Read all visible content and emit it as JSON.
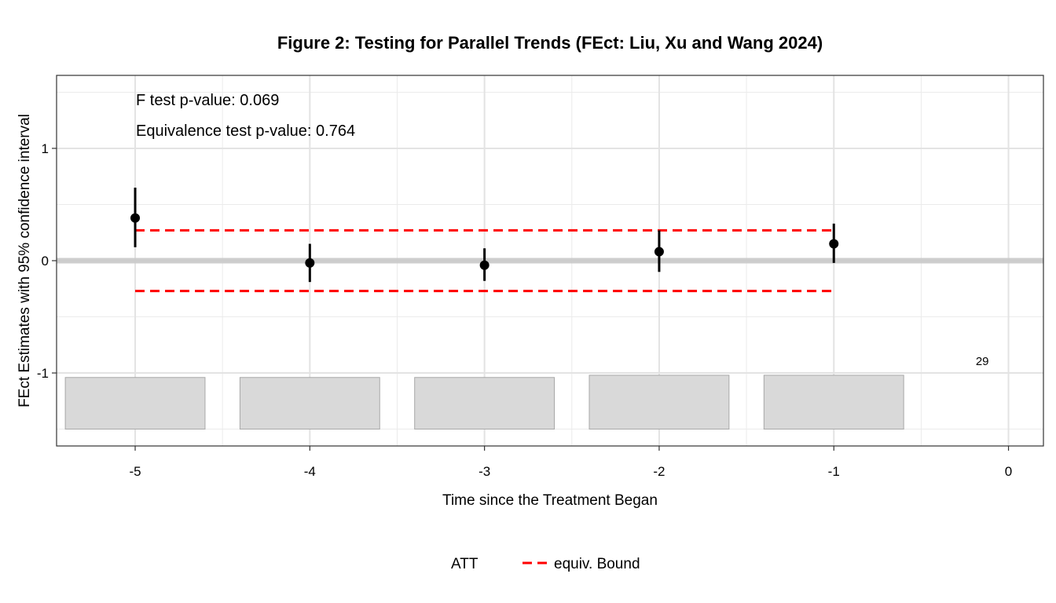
{
  "chart_data": {
    "type": "scatter",
    "title": "Figure 2: Testing for Parallel Trends (FEct: Liu, Xu and Wang 2024)",
    "xlabel": "Time since the Treatment Began",
    "ylabel": "FEct Estimates with 95% confidence interval",
    "xlim": [
      -5.45,
      0.2
    ],
    "ylim": [
      -1.65,
      1.65
    ],
    "x_ticks": [
      -5,
      -4,
      -3,
      -2,
      -1,
      0
    ],
    "y_ticks": [
      -1,
      0,
      1
    ],
    "grid": true,
    "legend_position": "bottom",
    "series": [
      {
        "name": "ATT",
        "color": "#000000",
        "points": [
          {
            "x": -5,
            "y": 0.38,
            "lower": 0.12,
            "upper": 0.65
          },
          {
            "x": -4,
            "y": -0.02,
            "lower": -0.19,
            "upper": 0.15
          },
          {
            "x": -3,
            "y": -0.04,
            "lower": -0.18,
            "upper": 0.11
          },
          {
            "x": -2,
            "y": 0.08,
            "lower": -0.1,
            "upper": 0.27
          },
          {
            "x": -1,
            "y": 0.15,
            "lower": -0.02,
            "upper": 0.33
          }
        ]
      },
      {
        "name": "equiv. Bound",
        "color": "#ff0000",
        "style": "dashed",
        "x_range": [
          -5,
          -1
        ],
        "upper": 0.27,
        "lower": -0.27
      }
    ],
    "zero_line": 0,
    "count_bars": {
      "color": "#d9d9d9",
      "baseline": -1.5,
      "bars": [
        {
          "x": -5,
          "top": -1.04
        },
        {
          "x": -4,
          "top": -1.04
        },
        {
          "x": -3,
          "top": -1.04
        },
        {
          "x": -2,
          "top": -1.02
        },
        {
          "x": -1,
          "top": -1.02
        }
      ],
      "max_label": "29"
    },
    "annotations": [
      "F test p-value: 0.069",
      "Equivalence test p-value: 0.764"
    ],
    "legend": [
      {
        "label": "ATT"
      },
      {
        "label": "equiv. Bound",
        "color": "#ff0000",
        "style": "dashed"
      }
    ]
  }
}
